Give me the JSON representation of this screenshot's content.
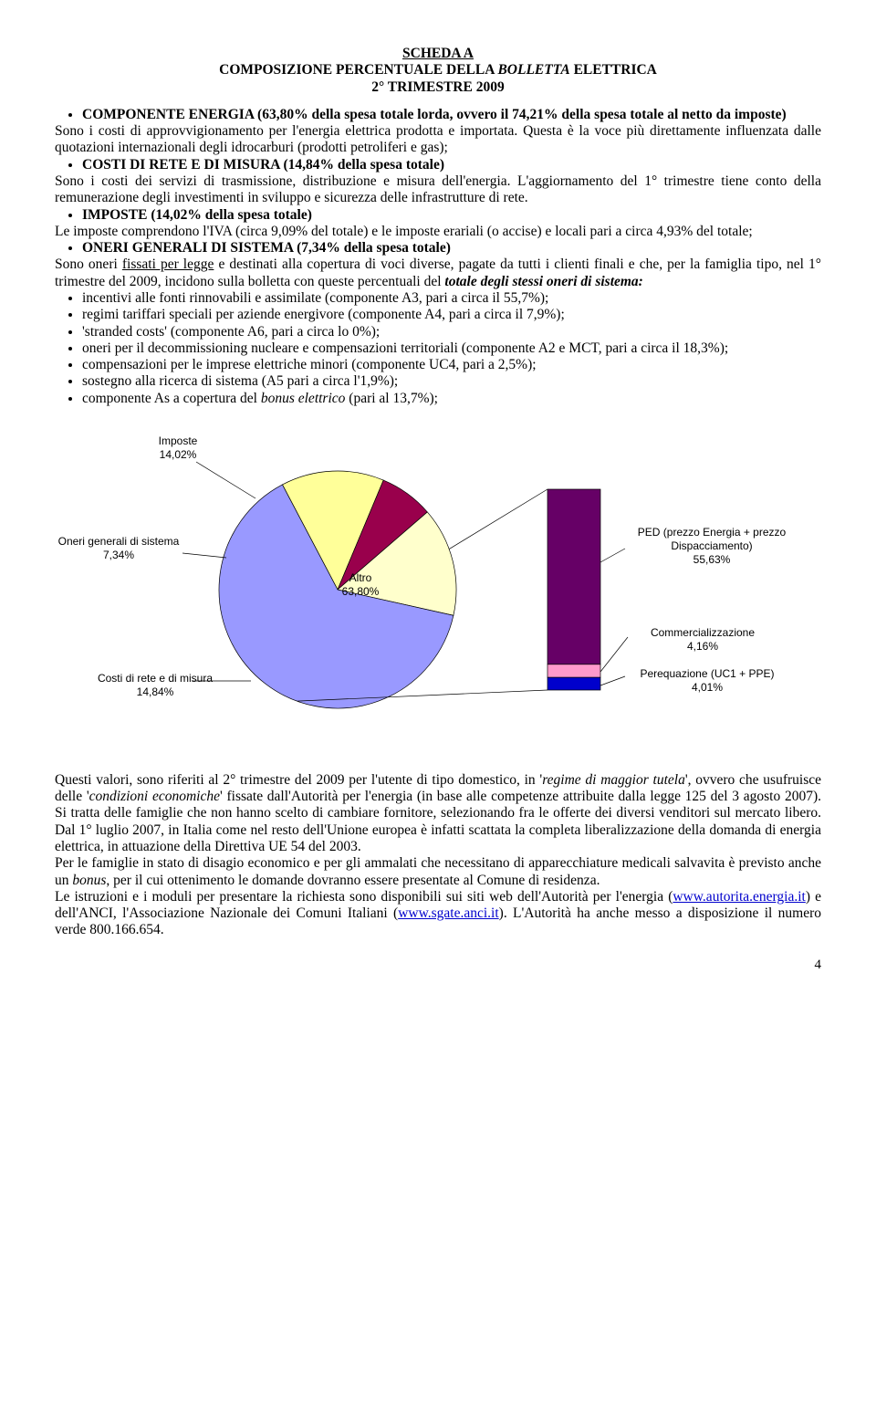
{
  "title": {
    "line1": "SCHEDA A",
    "line2_a": "COMPOSIZIONE PERCENTUALE DELLA ",
    "line2_b": "BOLLETTA",
    "line2_c": " ELETTRICA",
    "line3": "2° TRIMESTRE 2009"
  },
  "body": {
    "p1_bold": "COMPONENTE ENERGIA (63,80% della spesa totale lorda, ovvero il 74,21% della spesa totale al netto da imposte)",
    "p1_text": "Sono i costi di approvvigionamento per l'energia elettrica prodotta e importata. Questa è la voce più direttamente influenzata dalle quotazioni internazionali degli idrocarburi (prodotti petroliferi e gas);",
    "p2_bold": "COSTI DI RETE E DI MISURA (14,84% della spesa totale)",
    "p2_text": "Sono i costi dei servizi di trasmissione, distribuzione e misura dell'energia. L'aggiornamento del 1° trimestre tiene conto della remunerazione degli investimenti in sviluppo e sicurezza delle infrastrutture di rete.",
    "p3_bold": "IMPOSTE (14,02% della spesa totale)",
    "p3_text": "Le imposte comprendono l'IVA (circa 9,09% del totale) e le imposte erariali  (o accise) e locali pari a circa 4,93% del totale;",
    "p4_bold": "ONERI GENERALI DI SISTEMA (7,34% della spesa totale)",
    "p4_text_a": "Sono oneri ",
    "p4_text_b": "fissati per legge",
    "p4_text_c": " e destinati alla copertura di voci diverse, pagate da tutti i clienti finali e che, per la famiglia tipo, nel 1° trimestre del 2009, incidono sulla bolletta con queste percentuali del ",
    "p4_text_d": "totale degli stessi oneri di sistema:",
    "sub": {
      "s1": "incentivi alle fonti rinnovabili e assimilate (componente A3, pari a circa il 55,7%);",
      "s2": "regimi tariffari speciali per aziende energivore (componente A4, pari a circa il 7,9%);",
      "s3": "'stranded costs' (componente A6, pari a circa lo 0%);",
      "s4": "oneri per il decommissioning nucleare e compensazioni territoriali (componente A2 e MCT, pari a circa il 18,3%);",
      "s5": "compensazioni per le imprese elettriche minori (componente UC4, pari a 2,5%);",
      "s6": "sostegno alla ricerca di sistema (A5 pari a circa l'1,9%);",
      "s7_a": "componente As a copertura del ",
      "s7_b": "bonus elettrico",
      "s7_c": " (pari al 13,7%);"
    }
  },
  "chart": {
    "type": "pie",
    "background_color": "#ffffff",
    "slices": [
      {
        "label_line1": "Imposte",
        "label_line2": "14,02%",
        "value": 14.02,
        "color": "#ffff99"
      },
      {
        "label_line1": "Oneri generali di sistema",
        "label_line2": "7,34%",
        "value": 7.34,
        "color": "#99004c"
      },
      {
        "label_line1": "Costi di rete e di misura",
        "label_line2": "14,84%",
        "value": 14.84,
        "color": "#ffffcc"
      },
      {
        "label_line1": "Altro",
        "label_line2": "63,80%",
        "value": 63.8,
        "color": "#9999ff"
      }
    ],
    "secondary_slices": [
      {
        "label_line1": "PED (prezzo Energia + prezzo",
        "label_line2": "Dispacciamento)",
        "label_line3": "55,63%",
        "value": 55.63,
        "color": "#660066"
      },
      {
        "label_line1": "Commercializzazione",
        "label_line2": "4,16%",
        "value": 4.16,
        "color": "#ff99cc"
      },
      {
        "label_line1": "Perequazione (UC1 + PPE)",
        "label_line2": "4,01%",
        "value": 4.01,
        "color": "#0000cc"
      }
    ],
    "font_family": "Arial",
    "label_fontsize": 12,
    "leader_color": "#000000"
  },
  "footer": {
    "p1_a": "Questi valori, sono riferiti al 2° trimestre del 2009 per l'utente di tipo domestico, in '",
    "p1_b": "regime di maggior tutela",
    "p1_c": "', ovvero che usufruisce delle '",
    "p1_d": "condizioni economiche",
    "p1_e": "' fissate dall'Autorità per l'energia (in base alle competenze attribuite dalla legge 125 del 3 agosto 2007).  Si tratta delle famiglie che non hanno scelto di cambiare fornitore,  selezionando fra le offerte dei diversi venditori sul mercato libero. Dal 1° luglio 2007,  in Italia come nel resto dell'Unione europea  è infatti scattata la completa liberalizzazione della domanda di energia elettrica, in attuazione della Direttiva UE 54  del 2003.",
    "p2_a": "Per le famiglie in stato di disagio economico e per gli ammalati che necessitano di apparecchiature medicali salvavita è previsto anche un ",
    "p2_b": "bonus",
    "p2_c": ", per il cui ottenimento le domande dovranno essere presentate al Comune di residenza.",
    "p3_a": "Le istruzioni e i moduli per presentare la richiesta sono disponibili sui siti web dell'Autorità per l'energia (",
    "p3_link1": "www.autorita.energia.it",
    "p3_b": ") e dell'ANCI, l'Associazione Nazionale dei Comuni Italiani (",
    "p3_link2": "www.sgate.anci.it",
    "p3_c": "). L'Autorità ha anche messo a disposizione il numero verde 800.166.654."
  },
  "page_number": "4"
}
